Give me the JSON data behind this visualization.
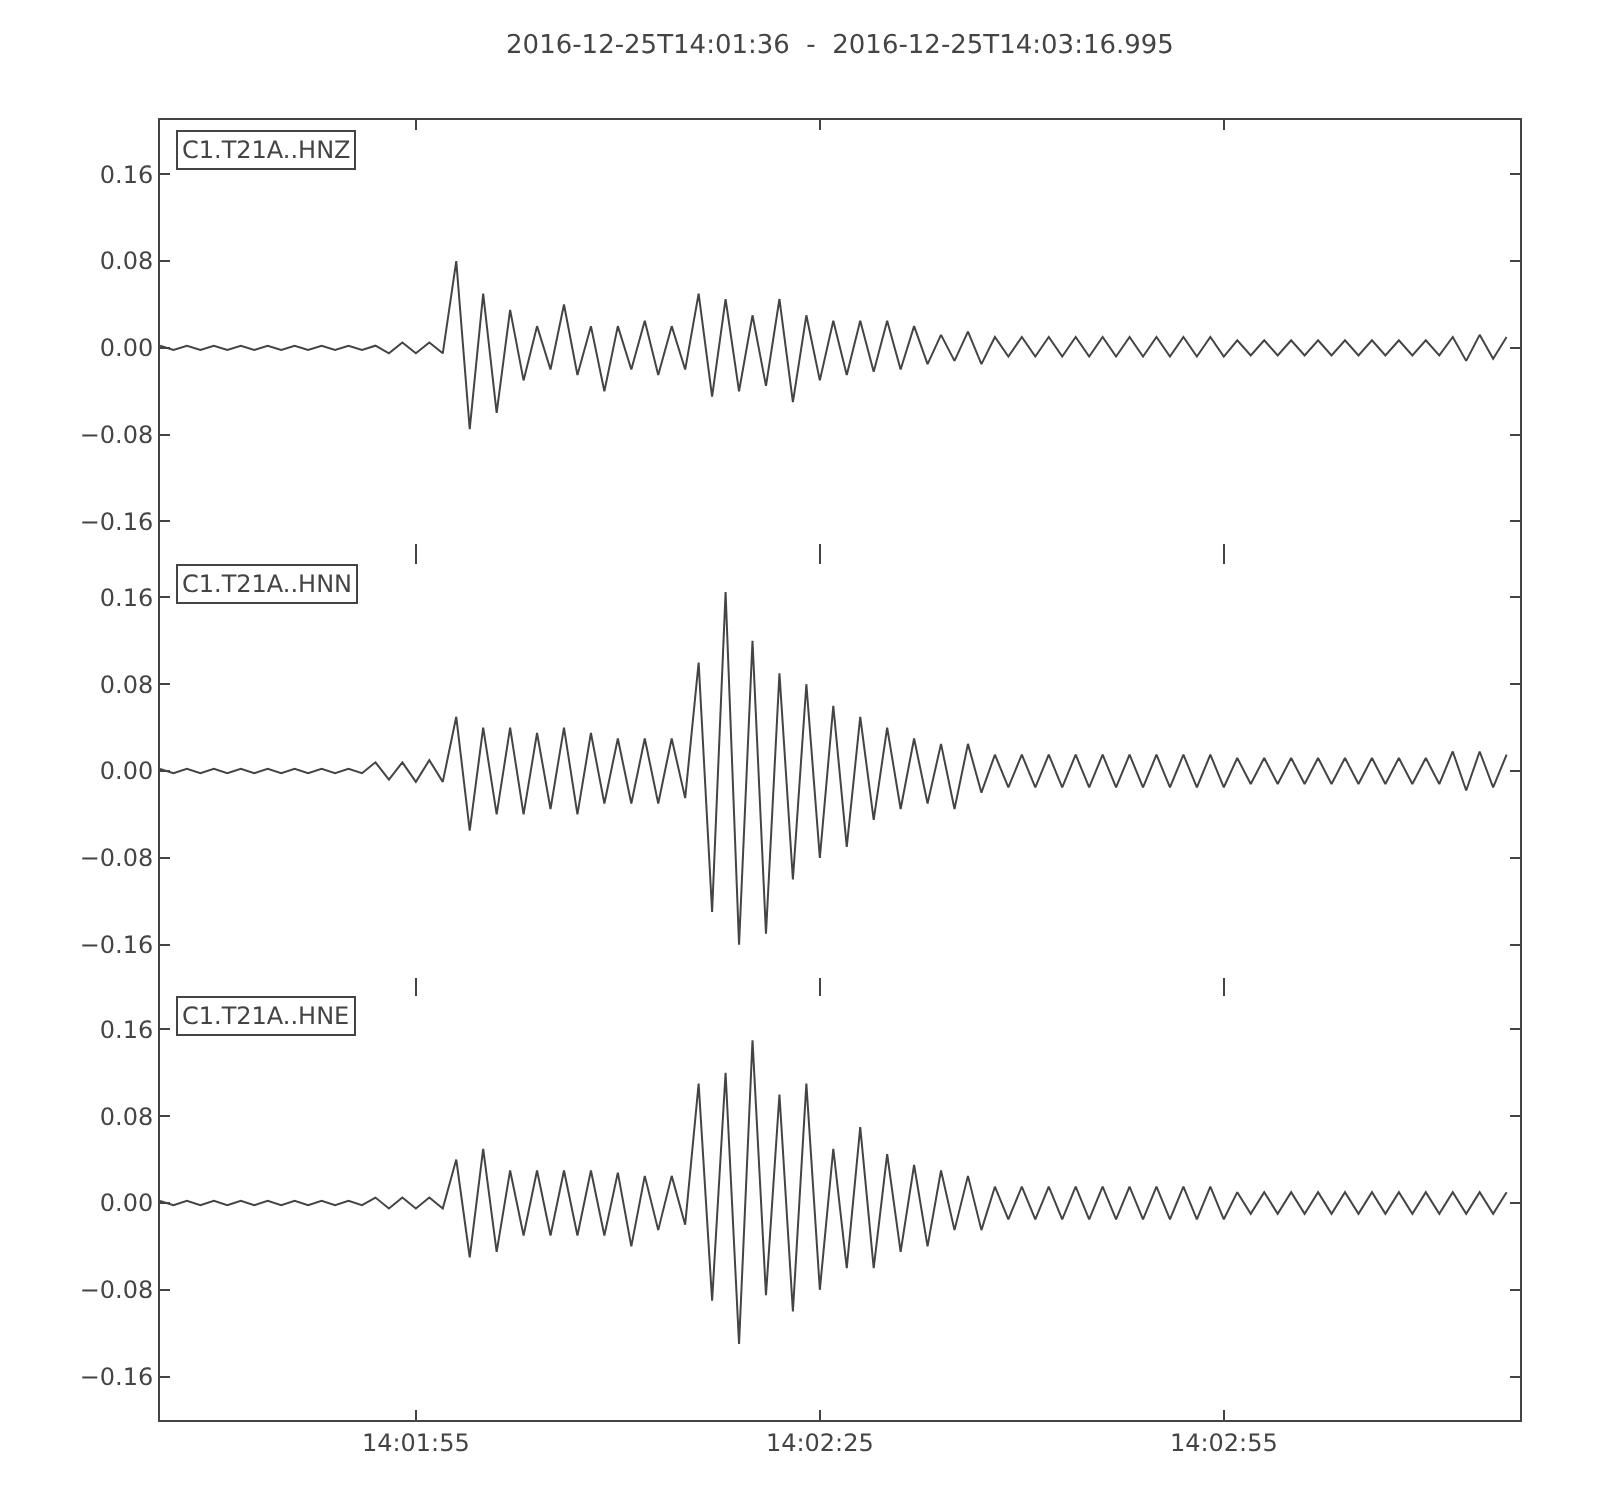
{
  "chart_data": [
    {
      "type": "line",
      "title": "2016-12-25T14:01:36  -  2016-12-25T14:03:16.995",
      "annotations": [
        "C1.T21A..HNZ"
      ],
      "tick_labels": "y",
      "grid": false,
      "xlim": [
        "2016-12-25T14:01:36",
        "2016-12-25T14:03:16.995"
      ],
      "xticks": [
        {
          "value": "2016-12-25T14:01:55",
          "label": null
        },
        {
          "value": "2016-12-25T14:02:25",
          "label": null
        },
        {
          "value": "2016-12-25T14:02:55",
          "label": null
        }
      ],
      "ylim": [
        -0.19,
        0.21
      ],
      "yticks": [
        {
          "value": -0.16,
          "label": "−0.16"
        },
        {
          "value": -0.08,
          "label": "−0.08"
        },
        {
          "value": 0,
          "label": "0.00"
        },
        {
          "value": 0.08,
          "label": "0.08"
        },
        {
          "value": 0.16,
          "label": "0.16"
        }
      ],
      "x": [
        "2016-12-25T14:01:36",
        "2016-12-25T14:01:37",
        "2016-12-25T14:01:38",
        "2016-12-25T14:01:39",
        "2016-12-25T14:01:40",
        "2016-12-25T14:01:41",
        "2016-12-25T14:01:42",
        "2016-12-25T14:01:43",
        "2016-12-25T14:01:44",
        "2016-12-25T14:01:45",
        "2016-12-25T14:01:46",
        "2016-12-25T14:01:47",
        "2016-12-25T14:01:48",
        "2016-12-25T14:01:49",
        "2016-12-25T14:01:50",
        "2016-12-25T14:01:51",
        "2016-12-25T14:01:52",
        "2016-12-25T14:01:53",
        "2016-12-25T14:01:54",
        "2016-12-25T14:01:55",
        "2016-12-25T14:01:56",
        "2016-12-25T14:01:57",
        "2016-12-25T14:01:58",
        "2016-12-25T14:01:59",
        "2016-12-25T14:02:00",
        "2016-12-25T14:02:01",
        "2016-12-25T14:02:02",
        "2016-12-25T14:02:03",
        "2016-12-25T14:02:04",
        "2016-12-25T14:02:05",
        "2016-12-25T14:02:06",
        "2016-12-25T14:02:07",
        "2016-12-25T14:02:08",
        "2016-12-25T14:02:09",
        "2016-12-25T14:02:10",
        "2016-12-25T14:02:11",
        "2016-12-25T14:02:12",
        "2016-12-25T14:02:13",
        "2016-12-25T14:02:14",
        "2016-12-25T14:02:15",
        "2016-12-25T14:02:16",
        "2016-12-25T14:02:17",
        "2016-12-25T14:02:18",
        "2016-12-25T14:02:19",
        "2016-12-25T14:02:20",
        "2016-12-25T14:02:21",
        "2016-12-25T14:02:22",
        "2016-12-25T14:02:23",
        "2016-12-25T14:02:24",
        "2016-12-25T14:02:25",
        "2016-12-25T14:02:26",
        "2016-12-25T14:02:27",
        "2016-12-25T14:02:28",
        "2016-12-25T14:02:29",
        "2016-12-25T14:02:30",
        "2016-12-25T14:02:31",
        "2016-12-25T14:02:32",
        "2016-12-25T14:02:33",
        "2016-12-25T14:02:34",
        "2016-12-25T14:02:35",
        "2016-12-25T14:02:36",
        "2016-12-25T14:02:37",
        "2016-12-25T14:02:38",
        "2016-12-25T14:02:39",
        "2016-12-25T14:02:40",
        "2016-12-25T14:02:41",
        "2016-12-25T14:02:42",
        "2016-12-25T14:02:43",
        "2016-12-25T14:02:44",
        "2016-12-25T14:02:45",
        "2016-12-25T14:02:46",
        "2016-12-25T14:02:47",
        "2016-12-25T14:02:48",
        "2016-12-25T14:02:49",
        "2016-12-25T14:02:50",
        "2016-12-25T14:02:51",
        "2016-12-25T14:02:52",
        "2016-12-25T14:02:53",
        "2016-12-25T14:02:54",
        "2016-12-25T14:02:55",
        "2016-12-25T14:02:56",
        "2016-12-25T14:02:57",
        "2016-12-25T14:02:58",
        "2016-12-25T14:02:59",
        "2016-12-25T14:03:00",
        "2016-12-25T14:03:01",
        "2016-12-25T14:03:02",
        "2016-12-25T14:03:03",
        "2016-12-25T14:03:04",
        "2016-12-25T14:03:05",
        "2016-12-25T14:03:06",
        "2016-12-25T14:03:07",
        "2016-12-25T14:03:08",
        "2016-12-25T14:03:09",
        "2016-12-25T14:03:10",
        "2016-12-25T14:03:11",
        "2016-12-25T14:03:12",
        "2016-12-25T14:03:13",
        "2016-12-25T14:03:14",
        "2016-12-25T14:03:15",
        "2016-12-25T14:03:16"
      ],
      "series": [
        {
          "color": "#444444",
          "values": [
            0.002,
            -0.002,
            0.002,
            -0.002,
            0.002,
            -0.002,
            0.002,
            -0.002,
            0.002,
            -0.002,
            0.002,
            -0.002,
            0.002,
            -0.002,
            0.002,
            -0.002,
            0.002,
            -0.005,
            0.005,
            -0.005,
            0.005,
            -0.005,
            0.08,
            -0.075,
            0.05,
            -0.06,
            0.035,
            -0.03,
            0.02,
            -0.02,
            0.04,
            -0.025,
            0.02,
            -0.04,
            0.02,
            -0.02,
            0.025,
            -0.025,
            0.02,
            -0.02,
            0.05,
            -0.045,
            0.045,
            -0.04,
            0.03,
            -0.035,
            0.045,
            -0.05,
            0.03,
            -0.03,
            0.025,
            -0.025,
            0.025,
            -0.022,
            0.025,
            -0.02,
            0.02,
            -0.015,
            0.012,
            -0.012,
            0.015,
            -0.015,
            0.01,
            -0.008,
            0.01,
            -0.008,
            0.01,
            -0.008,
            0.01,
            -0.008,
            0.01,
            -0.008,
            0.01,
            -0.008,
            0.01,
            -0.008,
            0.01,
            -0.008,
            0.01,
            -0.008,
            0.007,
            -0.007,
            0.007,
            -0.007,
            0.007,
            -0.007,
            0.007,
            -0.007,
            0.007,
            -0.007,
            0.007,
            -0.007,
            0.007,
            -0.007,
            0.007,
            -0.007,
            0.01,
            -0.012,
            0.012,
            -0.01,
            0.01
          ]
        }
      ]
    },
    {
      "type": "line",
      "annotations": [
        "C1.T21A..HNN"
      ],
      "tick_labels": "y",
      "grid": false,
      "xlim": [
        "2016-12-25T14:01:36",
        "2016-12-25T14:03:16.995"
      ],
      "xticks": [
        {
          "value": "2016-12-25T14:01:55",
          "label": null
        },
        {
          "value": "2016-12-25T14:02:25",
          "label": null
        },
        {
          "value": "2016-12-25T14:02:55",
          "label": null
        }
      ],
      "ylim": [
        -0.2,
        0.2
      ],
      "yticks": [
        {
          "value": -0.16,
          "label": "−0.16"
        },
        {
          "value": -0.08,
          "label": "−0.08"
        },
        {
          "value": 0,
          "label": "0.00"
        },
        {
          "value": 0.08,
          "label": "0.08"
        },
        {
          "value": 0.16,
          "label": "0.16"
        }
      ],
      "x": [
        "2016-12-25T14:01:36",
        "2016-12-25T14:01:37",
        "2016-12-25T14:01:38",
        "2016-12-25T14:01:39",
        "2016-12-25T14:01:40",
        "2016-12-25T14:01:41",
        "2016-12-25T14:01:42",
        "2016-12-25T14:01:43",
        "2016-12-25T14:01:44",
        "2016-12-25T14:01:45",
        "2016-12-25T14:01:46",
        "2016-12-25T14:01:47",
        "2016-12-25T14:01:48",
        "2016-12-25T14:01:49",
        "2016-12-25T14:01:50",
        "2016-12-25T14:01:51",
        "2016-12-25T14:01:52",
        "2016-12-25T14:01:53",
        "2016-12-25T14:01:54",
        "2016-12-25T14:01:55",
        "2016-12-25T14:01:56",
        "2016-12-25T14:01:57",
        "2016-12-25T14:01:58",
        "2016-12-25T14:01:59",
        "2016-12-25T14:02:00",
        "2016-12-25T14:02:01",
        "2016-12-25T14:02:02",
        "2016-12-25T14:02:03",
        "2016-12-25T14:02:04",
        "2016-12-25T14:02:05",
        "2016-12-25T14:02:06",
        "2016-12-25T14:02:07",
        "2016-12-25T14:02:08",
        "2016-12-25T14:02:09",
        "2016-12-25T14:02:10",
        "2016-12-25T14:02:11",
        "2016-12-25T14:02:12",
        "2016-12-25T14:02:13",
        "2016-12-25T14:02:14",
        "2016-12-25T14:02:15",
        "2016-12-25T14:02:16",
        "2016-12-25T14:02:17",
        "2016-12-25T14:02:18",
        "2016-12-25T14:02:19",
        "2016-12-25T14:02:20",
        "2016-12-25T14:02:21",
        "2016-12-25T14:02:22",
        "2016-12-25T14:02:23",
        "2016-12-25T14:02:24",
        "2016-12-25T14:02:25",
        "2016-12-25T14:02:26",
        "2016-12-25T14:02:27",
        "2016-12-25T14:02:28",
        "2016-12-25T14:02:29",
        "2016-12-25T14:02:30",
        "2016-12-25T14:02:31",
        "2016-12-25T14:02:32",
        "2016-12-25T14:02:33",
        "2016-12-25T14:02:34",
        "2016-12-25T14:02:35",
        "2016-12-25T14:02:36",
        "2016-12-25T14:02:37",
        "2016-12-25T14:02:38",
        "2016-12-25T14:02:39",
        "2016-12-25T14:02:40",
        "2016-12-25T14:02:41",
        "2016-12-25T14:02:42",
        "2016-12-25T14:02:43",
        "2016-12-25T14:02:44",
        "2016-12-25T14:02:45",
        "2016-12-25T14:02:46",
        "2016-12-25T14:02:47",
        "2016-12-25T14:02:48",
        "2016-12-25T14:02:49",
        "2016-12-25T14:02:50",
        "2016-12-25T14:02:51",
        "2016-12-25T14:02:52",
        "2016-12-25T14:02:53",
        "2016-12-25T14:02:54",
        "2016-12-25T14:02:55",
        "2016-12-25T14:02:56",
        "2016-12-25T14:02:57",
        "2016-12-25T14:02:58",
        "2016-12-25T14:02:59",
        "2016-12-25T14:03:00",
        "2016-12-25T14:03:01",
        "2016-12-25T14:03:02",
        "2016-12-25T14:03:03",
        "2016-12-25T14:03:04",
        "2016-12-25T14:03:05",
        "2016-12-25T14:03:06",
        "2016-12-25T14:03:07",
        "2016-12-25T14:03:08",
        "2016-12-25T14:03:09",
        "2016-12-25T14:03:10",
        "2016-12-25T14:03:11",
        "2016-12-25T14:03:12",
        "2016-12-25T14:03:13",
        "2016-12-25T14:03:14",
        "2016-12-25T14:03:15",
        "2016-12-25T14:03:16"
      ],
      "series": [
        {
          "color": "#444444",
          "values": [
            0.002,
            -0.002,
            0.002,
            -0.002,
            0.002,
            -0.002,
            0.002,
            -0.002,
            0.002,
            -0.002,
            0.002,
            -0.002,
            0.002,
            -0.002,
            0.002,
            -0.002,
            0.008,
            -0.008,
            0.008,
            -0.01,
            0.01,
            -0.01,
            0.05,
            -0.055,
            0.04,
            -0.04,
            0.04,
            -0.04,
            0.035,
            -0.035,
            0.04,
            -0.04,
            0.035,
            -0.03,
            0.03,
            -0.03,
            0.03,
            -0.03,
            0.03,
            -0.025,
            0.1,
            -0.13,
            0.165,
            -0.16,
            0.12,
            -0.15,
            0.09,
            -0.1,
            0.08,
            -0.08,
            0.06,
            -0.07,
            0.05,
            -0.045,
            0.04,
            -0.035,
            0.03,
            -0.03,
            0.025,
            -0.035,
            0.025,
            -0.02,
            0.015,
            -0.015,
            0.015,
            -0.015,
            0.015,
            -0.015,
            0.015,
            -0.015,
            0.015,
            -0.015,
            0.015,
            -0.015,
            0.015,
            -0.015,
            0.015,
            -0.015,
            0.015,
            -0.015,
            0.012,
            -0.012,
            0.012,
            -0.012,
            0.012,
            -0.012,
            0.012,
            -0.012,
            0.012,
            -0.012,
            0.012,
            -0.012,
            0.012,
            -0.012,
            0.012,
            -0.012,
            0.018,
            -0.018,
            0.018,
            -0.015,
            0.015
          ]
        }
      ]
    },
    {
      "type": "line",
      "annotations": [
        "C1.T21A..HNE"
      ],
      "grid": false,
      "xlim": [
        "2016-12-25T14:01:36",
        "2016-12-25T14:03:16.995"
      ],
      "xticks": [
        {
          "value": "2016-12-25T14:01:55",
          "label": "14:01:55"
        },
        {
          "value": "2016-12-25T14:02:25",
          "label": "14:02:25"
        },
        {
          "value": "2016-12-25T14:02:55",
          "label": "14:02:55"
        }
      ],
      "ylim": [
        -0.2,
        0.2
      ],
      "yticks": [
        {
          "value": -0.16,
          "label": "−0.16"
        },
        {
          "value": -0.08,
          "label": "−0.08"
        },
        {
          "value": 0,
          "label": "0.00"
        },
        {
          "value": 0.08,
          "label": "0.08"
        },
        {
          "value": 0.16,
          "label": "0.16"
        }
      ],
      "x": [
        "2016-12-25T14:01:36",
        "2016-12-25T14:01:37",
        "2016-12-25T14:01:38",
        "2016-12-25T14:01:39",
        "2016-12-25T14:01:40",
        "2016-12-25T14:01:41",
        "2016-12-25T14:01:42",
        "2016-12-25T14:01:43",
        "2016-12-25T14:01:44",
        "2016-12-25T14:01:45",
        "2016-12-25T14:01:46",
        "2016-12-25T14:01:47",
        "2016-12-25T14:01:48",
        "2016-12-25T14:01:49",
        "2016-12-25T14:01:50",
        "2016-12-25T14:01:51",
        "2016-12-25T14:01:52",
        "2016-12-25T14:01:53",
        "2016-12-25T14:01:54",
        "2016-12-25T14:01:55",
        "2016-12-25T14:01:56",
        "2016-12-25T14:01:57",
        "2016-12-25T14:01:58",
        "2016-12-25T14:01:59",
        "2016-12-25T14:02:00",
        "2016-12-25T14:02:01",
        "2016-12-25T14:02:02",
        "2016-12-25T14:02:03",
        "2016-12-25T14:02:04",
        "2016-12-25T14:02:05",
        "2016-12-25T14:02:06",
        "2016-12-25T14:02:07",
        "2016-12-25T14:02:08",
        "2016-12-25T14:02:09",
        "2016-12-25T14:02:10",
        "2016-12-25T14:02:11",
        "2016-12-25T14:02:12",
        "2016-12-25T14:02:13",
        "2016-12-25T14:02:14",
        "2016-12-25T14:02:15",
        "2016-12-25T14:02:16",
        "2016-12-25T14:02:17",
        "2016-12-25T14:02:18",
        "2016-12-25T14:02:19",
        "2016-12-25T14:02:20",
        "2016-12-25T14:02:21",
        "2016-12-25T14:02:22",
        "2016-12-25T14:02:23",
        "2016-12-25T14:02:24",
        "2016-12-25T14:02:25",
        "2016-12-25T14:02:26",
        "2016-12-25T14:02:27",
        "2016-12-25T14:02:28",
        "2016-12-25T14:02:29",
        "2016-12-25T14:02:30",
        "2016-12-25T14:02:31",
        "2016-12-25T14:02:32",
        "2016-12-25T14:02:33",
        "2016-12-25T14:02:34",
        "2016-12-25T14:02:35",
        "2016-12-25T14:02:36",
        "2016-12-25T14:02:37",
        "2016-12-25T14:02:38",
        "2016-12-25T14:02:39",
        "2016-12-25T14:02:40",
        "2016-12-25T14:02:41",
        "2016-12-25T14:02:42",
        "2016-12-25T14:02:43",
        "2016-12-25T14:02:44",
        "2016-12-25T14:02:45",
        "2016-12-25T14:02:46",
        "2016-12-25T14:02:47",
        "2016-12-25T14:02:48",
        "2016-12-25T14:02:49",
        "2016-12-25T14:02:50",
        "2016-12-25T14:02:51",
        "2016-12-25T14:02:52",
        "2016-12-25T14:02:53",
        "2016-12-25T14:02:54",
        "2016-12-25T14:02:55",
        "2016-12-25T14:02:56",
        "2016-12-25T14:02:57",
        "2016-12-25T14:02:58",
        "2016-12-25T14:02:59",
        "2016-12-25T14:03:00",
        "2016-12-25T14:03:01",
        "2016-12-25T14:03:02",
        "2016-12-25T14:03:03",
        "2016-12-25T14:03:04",
        "2016-12-25T14:03:05",
        "2016-12-25T14:03:06",
        "2016-12-25T14:03:07",
        "2016-12-25T14:03:08",
        "2016-12-25T14:03:09",
        "2016-12-25T14:03:10",
        "2016-12-25T14:03:11",
        "2016-12-25T14:03:12",
        "2016-12-25T14:03:13",
        "2016-12-25T14:03:14",
        "2016-12-25T14:03:15",
        "2016-12-25T14:03:16"
      ],
      "series": [
        {
          "color": "#444444",
          "values": [
            0.002,
            -0.002,
            0.002,
            -0.002,
            0.002,
            -0.002,
            0.002,
            -0.002,
            0.002,
            -0.002,
            0.002,
            -0.002,
            0.002,
            -0.002,
            0.002,
            -0.002,
            0.005,
            -0.005,
            0.005,
            -0.005,
            0.005,
            -0.005,
            0.04,
            -0.05,
            0.05,
            -0.045,
            0.03,
            -0.03,
            0.03,
            -0.03,
            0.03,
            -0.03,
            0.03,
            -0.03,
            0.028,
            -0.04,
            0.025,
            -0.025,
            0.025,
            -0.02,
            0.11,
            -0.09,
            0.12,
            -0.13,
            0.15,
            -0.085,
            0.1,
            -0.1,
            0.11,
            -0.08,
            0.05,
            -0.06,
            0.07,
            -0.06,
            0.045,
            -0.045,
            0.035,
            -0.04,
            0.03,
            -0.025,
            0.025,
            -0.025,
            0.015,
            -0.015,
            0.015,
            -0.015,
            0.015,
            -0.015,
            0.015,
            -0.015,
            0.015,
            -0.015,
            0.015,
            -0.015,
            0.015,
            -0.015,
            0.015,
            -0.015,
            0.015,
            -0.015,
            0.01,
            -0.01,
            0.01,
            -0.01,
            0.01,
            -0.01,
            0.01,
            -0.01,
            0.01,
            -0.01,
            0.01,
            -0.01,
            0.01,
            -0.01,
            0.01,
            -0.01,
            0.01,
            -0.01,
            0.01,
            -0.01,
            0.01
          ]
        }
      ]
    }
  ]
}
